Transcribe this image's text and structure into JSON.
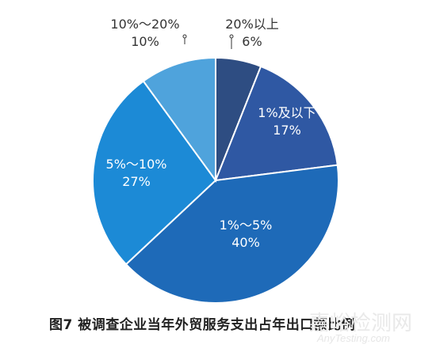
{
  "chart_data": {
    "type": "pie",
    "title": "图7 被调查企业当年外贸服务支出占年出口额比例",
    "start": "12 o'clock",
    "direction": "clockwise",
    "slices": [
      {
        "label": "20%以上",
        "value": 6,
        "value_label": "6%",
        "color": "#2e4d82",
        "label_color": "#333333"
      },
      {
        "label": "1%及以下",
        "value": 17,
        "value_label": "17%",
        "color": "#2f58a3",
        "label_color": "#ffffff"
      },
      {
        "label": "1%～5%",
        "value": 40,
        "value_label": "40%",
        "color": "#1e6ab8",
        "label_color": "#ffffff"
      },
      {
        "label": "5%～10%",
        "value": 27,
        "value_label": "27%",
        "color": "#1c8ad6",
        "label_color": "#ffffff"
      },
      {
        "label": "10%～20%",
        "value": 10,
        "value_label": "10%",
        "color": "#4fa3dc",
        "label_color": "#333333"
      }
    ]
  },
  "watermark": {
    "cn": "嘉峪检测网",
    "en": "AnyTesting.com"
  }
}
